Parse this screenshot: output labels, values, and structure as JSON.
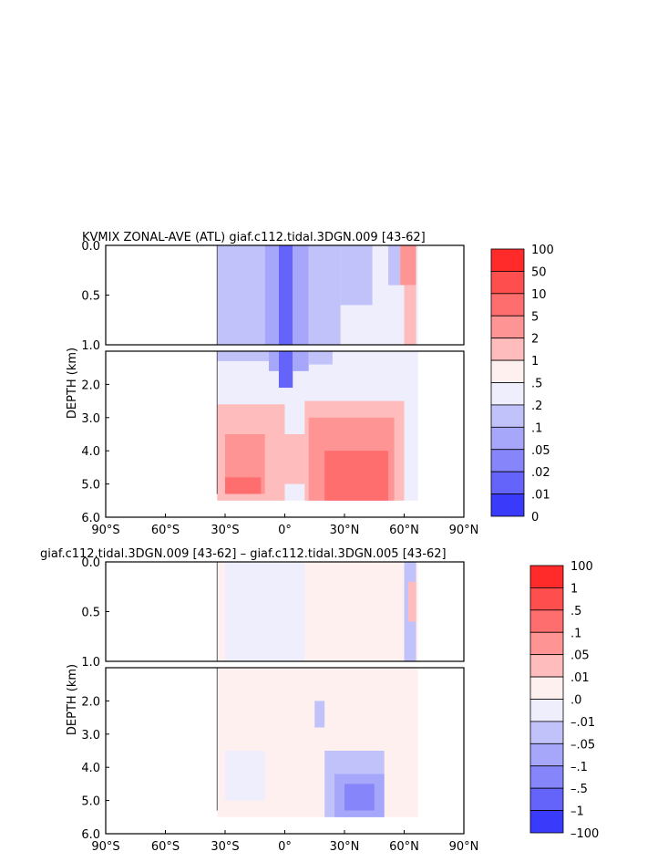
{
  "chart_data": [
    {
      "type": "heatmap",
      "title": "KVMIX ZONAL-AVE (ATL) giaf.c112.tidal.3DGN.009 [43-62]",
      "ylabel": "DEPTH (km)",
      "upper_ticks": [
        "0.0",
        "0.5",
        "1.0"
      ],
      "lower_ticks": [
        "2.0",
        "3.0",
        "4.0",
        "5.0",
        "6.0"
      ],
      "xticks": [
        "90°S",
        "60°S",
        "30°S",
        "0°",
        "30°N",
        "60°N",
        "90°N"
      ],
      "colorbar_labels": [
        "100",
        "50",
        "10",
        "5",
        "2",
        "1",
        ".5",
        ".2",
        ".1",
        ".05",
        ".02",
        ".01",
        "0"
      ],
      "colorbar_colors": [
        "#ff2a2a",
        "#ff4e4e",
        "#ff6e6e",
        "#ff9494",
        "#ffbcbc",
        "#fff0f0",
        "#eeeefc",
        "#c2c2fa",
        "#a6a6fa",
        "#8686fa",
        "#6464fa",
        "#3a3afa"
      ],
      "xlim": [
        -90,
        90
      ],
      "upper_ylim": [
        0,
        1.0
      ],
      "lower_ylim": [
        1.0,
        6.0
      ],
      "data_extent_lat": [
        -34,
        67
      ],
      "regions": [
        {
          "lat": [
            -34,
            67
          ],
          "depth": [
            0,
            5.5
          ],
          "level": 6
        },
        {
          "lat": [
            -34,
            -10
          ],
          "depth": [
            0,
            1.0
          ],
          "level": 7
        },
        {
          "lat": [
            -10,
            -3
          ],
          "depth": [
            0,
            1.0
          ],
          "level": 8
        },
        {
          "lat": [
            -3,
            4
          ],
          "depth": [
            0,
            1.0
          ],
          "level": 10
        },
        {
          "lat": [
            4,
            12
          ],
          "depth": [
            0,
            1.0
          ],
          "level": 8
        },
        {
          "lat": [
            12,
            28
          ],
          "depth": [
            0,
            1.0
          ],
          "level": 7
        },
        {
          "lat": [
            28,
            44
          ],
          "depth": [
            0,
            0.6
          ],
          "level": 7
        },
        {
          "lat": [
            52,
            58
          ],
          "depth": [
            0,
            0.4
          ],
          "level": 7
        },
        {
          "lat": [
            58,
            66
          ],
          "depth": [
            0,
            0.4
          ],
          "level": 3
        },
        {
          "lat": [
            60,
            66
          ],
          "depth": [
            0.4,
            1.0
          ],
          "level": 4
        },
        {
          "lat": [
            -34,
            -8
          ],
          "depth": [
            1.0,
            1.3
          ],
          "level": 7
        },
        {
          "lat": [
            -8,
            -3
          ],
          "depth": [
            1.0,
            1.6
          ],
          "level": 8
        },
        {
          "lat": [
            -3,
            4
          ],
          "depth": [
            1.0,
            2.1
          ],
          "level": 10
        },
        {
          "lat": [
            4,
            12
          ],
          "depth": [
            1.0,
            1.6
          ],
          "level": 8
        },
        {
          "lat": [
            12,
            24
          ],
          "depth": [
            1.0,
            1.4
          ],
          "level": 7
        },
        {
          "lat": [
            -34,
            0
          ],
          "depth": [
            2.6,
            5.5
          ],
          "level": 4
        },
        {
          "lat": [
            -30,
            -10
          ],
          "depth": [
            3.5,
            5.3
          ],
          "level": 3
        },
        {
          "lat": [
            0,
            10
          ],
          "depth": [
            3.5,
            5.0
          ],
          "level": 4
        },
        {
          "lat": [
            10,
            60
          ],
          "depth": [
            2.5,
            5.5
          ],
          "level": 4
        },
        {
          "lat": [
            12,
            55
          ],
          "depth": [
            3.0,
            5.5
          ],
          "level": 3
        },
        {
          "lat": [
            20,
            52
          ],
          "depth": [
            4.0,
            5.5
          ],
          "level": 2
        },
        {
          "lat": [
            -30,
            -12
          ],
          "depth": [
            4.8,
            5.3
          ],
          "level": 2
        }
      ]
    },
    {
      "type": "heatmap",
      "title": "giaf.c112.tidal.3DGN.009 [43-62] – giaf.c112.tidal.3DGN.005 [43-62]",
      "ylabel": "DEPTH (km)",
      "upper_ticks": [
        "0.0",
        "0.5",
        "1.0"
      ],
      "lower_ticks": [
        "2.0",
        "3.0",
        "4.0",
        "5.0",
        "6.0"
      ],
      "xticks": [
        "90°S",
        "60°S",
        "30°S",
        "0°",
        "30°N",
        "60°N",
        "90°N"
      ],
      "colorbar_labels": [
        "100",
        "1",
        ".5",
        ".1",
        ".05",
        ".01",
        ".0",
        "–.01",
        "–.05",
        "–.1",
        "–.5",
        "–1",
        "–100"
      ],
      "colorbar_colors": [
        "#ff2a2a",
        "#ff4e4e",
        "#ff6e6e",
        "#ff9494",
        "#ffbcbc",
        "#fff0f0",
        "#eeeefc",
        "#c2c2fa",
        "#a6a6fa",
        "#8686fa",
        "#6464fa",
        "#3a3afa"
      ],
      "xlim": [
        -90,
        90
      ],
      "upper_ylim": [
        0,
        1.0
      ],
      "lower_ylim": [
        1.0,
        6.0
      ],
      "data_extent_lat": [
        -34,
        67
      ],
      "regions": [
        {
          "lat": [
            -34,
            67
          ],
          "depth": [
            0,
            5.5
          ],
          "level": 5
        },
        {
          "lat": [
            -30,
            10
          ],
          "depth": [
            0,
            1.0
          ],
          "level": 6
        },
        {
          "lat": [
            60,
            66
          ],
          "depth": [
            0,
            1.0
          ],
          "level": 7
        },
        {
          "lat": [
            62,
            66
          ],
          "depth": [
            0.2,
            0.6
          ],
          "level": 4
        },
        {
          "lat": [
            -30,
            -10
          ],
          "depth": [
            3.5,
            5.0
          ],
          "level": 6
        },
        {
          "lat": [
            20,
            50
          ],
          "depth": [
            3.5,
            5.5
          ],
          "level": 7
        },
        {
          "lat": [
            25,
            50
          ],
          "depth": [
            4.2,
            5.5
          ],
          "level": 8
        },
        {
          "lat": [
            30,
            45
          ],
          "depth": [
            4.5,
            5.3
          ],
          "level": 9
        },
        {
          "lat": [
            15,
            20
          ],
          "depth": [
            2.0,
            2.8
          ],
          "level": 7
        }
      ]
    }
  ]
}
